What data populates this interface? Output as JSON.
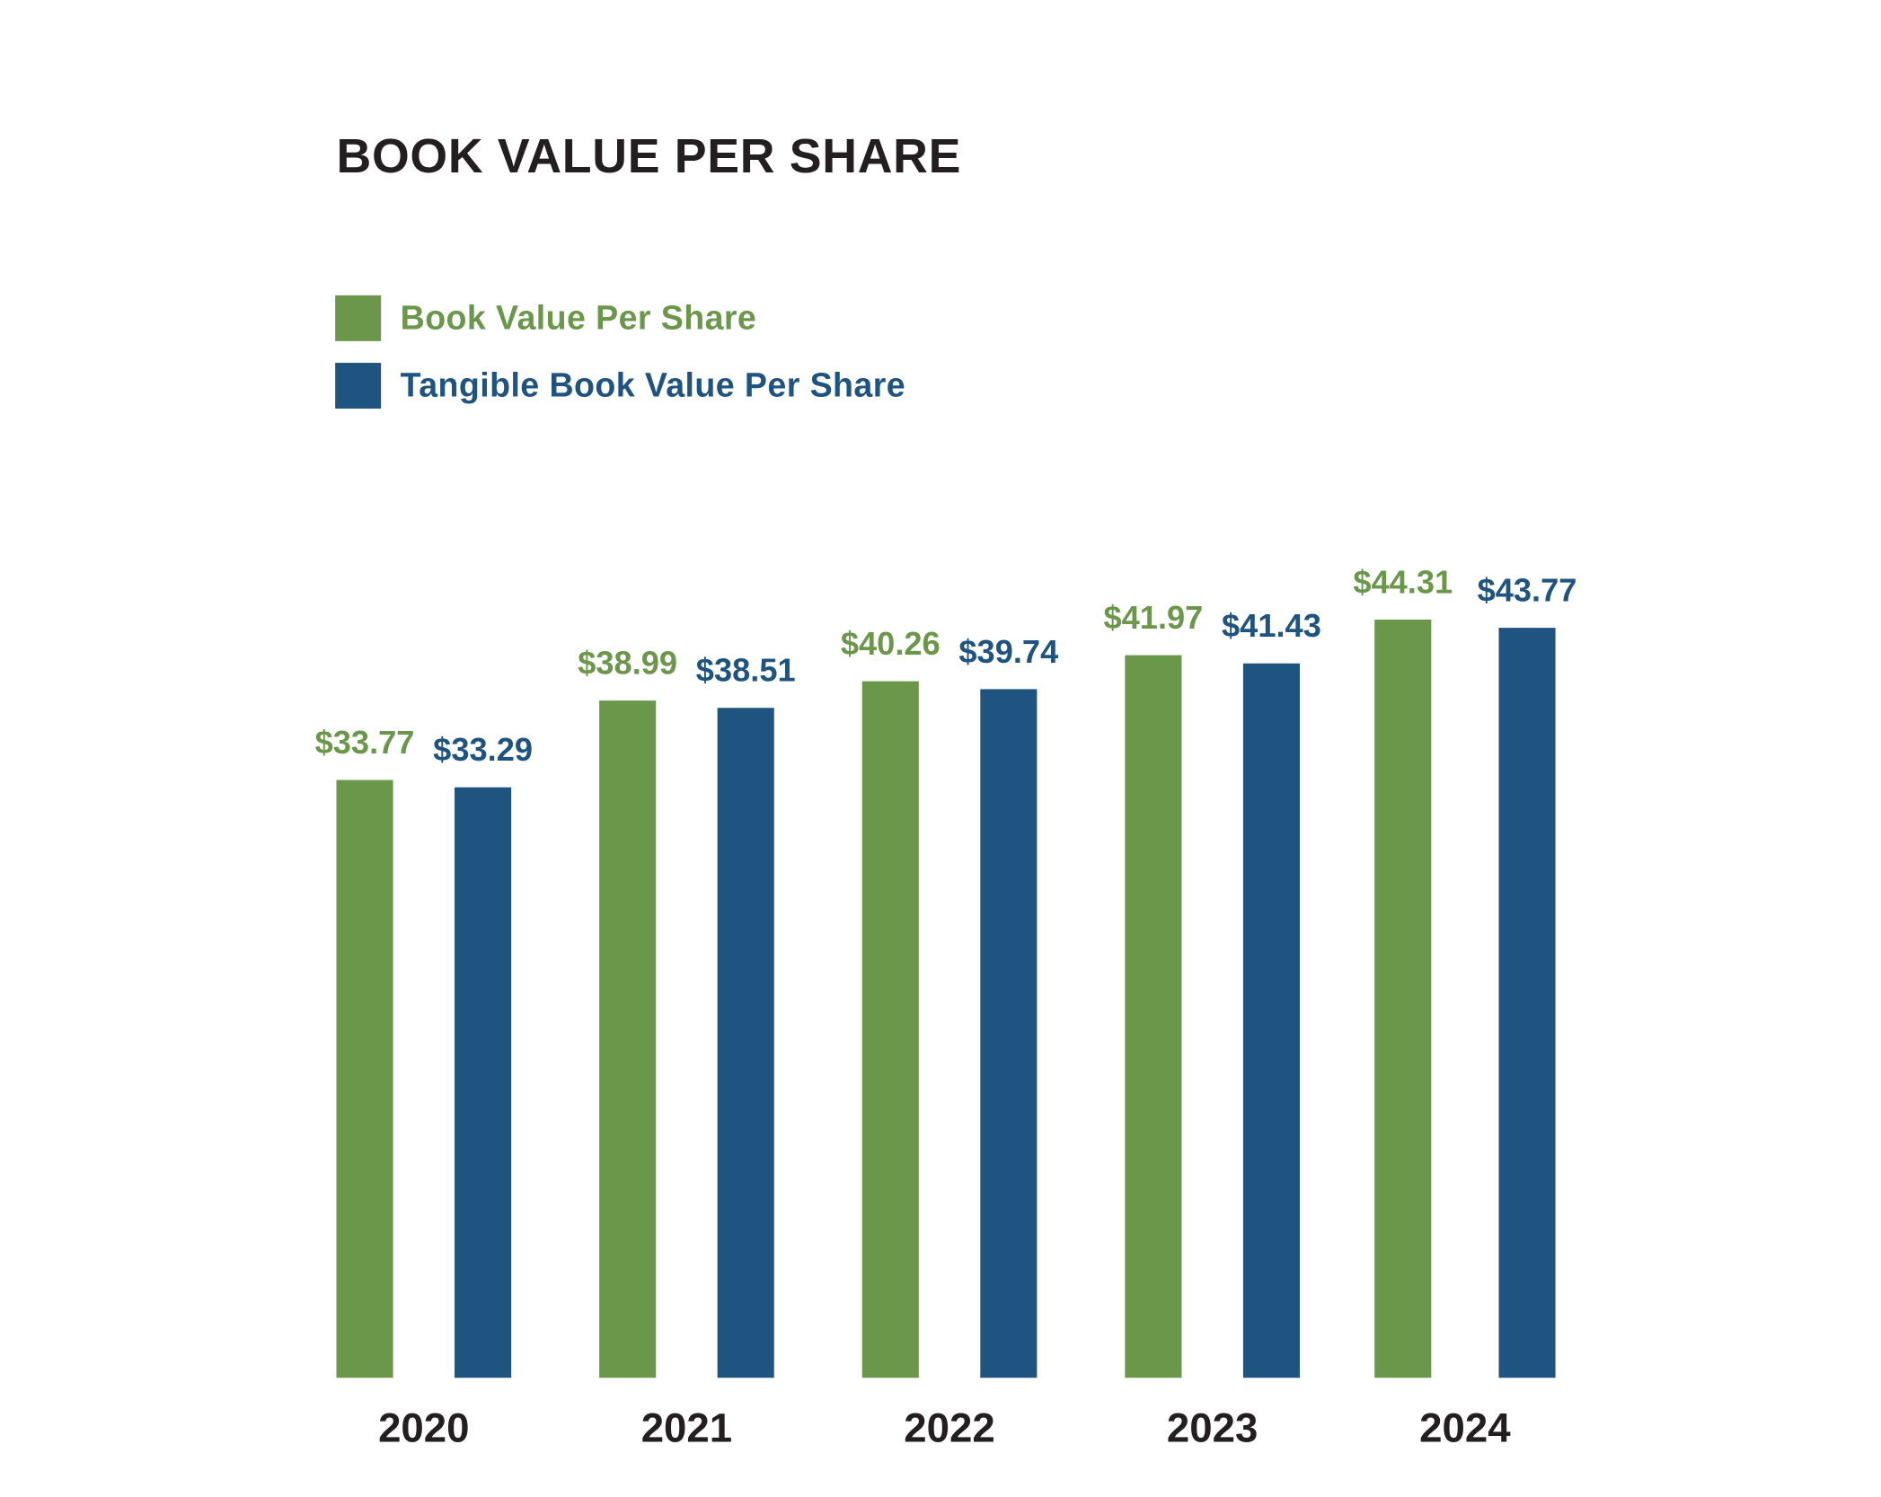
{
  "chart_data": {
    "type": "bar",
    "title": "BOOK VALUE PER SHARE",
    "categories": [
      "2020",
      "2021",
      "2022",
      "2023",
      "2024"
    ],
    "series": [
      {
        "name": "Book Value Per Share",
        "color": "#6b974b",
        "values": [
          33.77,
          38.99,
          40.26,
          41.97,
          44.31
        ],
        "labels": [
          "$33.77",
          "$38.99",
          "$40.26",
          "$41.97",
          "$44.31"
        ]
      },
      {
        "name": "Tangible Book Value Per Share",
        "color": "#1f5380",
        "values": [
          33.29,
          38.51,
          39.74,
          41.43,
          43.77
        ],
        "labels": [
          "$33.29",
          "$38.51",
          "$39.74",
          "$41.43",
          "$43.77"
        ]
      }
    ],
    "xlabel": "",
    "ylabel": "",
    "ylim": [
      -5.5,
      45
    ],
    "grid": false,
    "y_axis_visible": false,
    "legend_position": "top-left",
    "category_label_color": "#231f20"
  }
}
